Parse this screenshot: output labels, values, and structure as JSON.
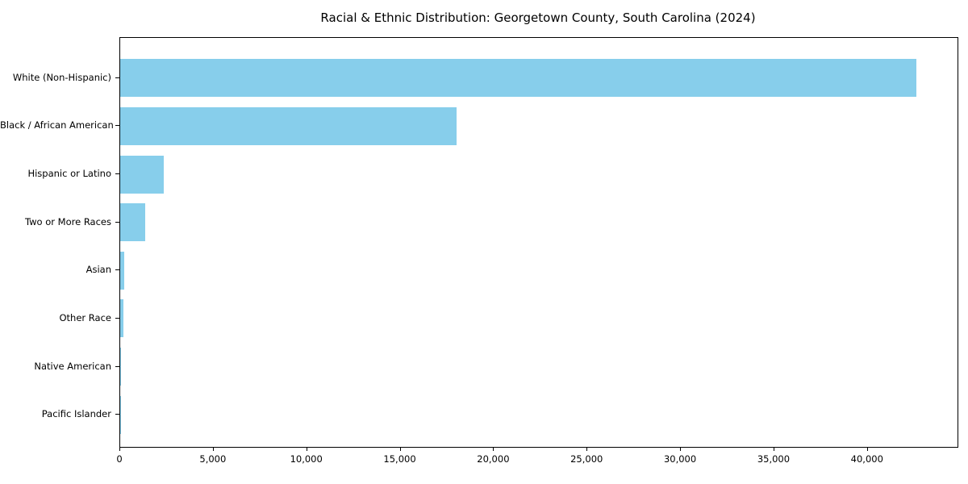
{
  "chart_data": {
    "type": "bar",
    "orientation": "horizontal",
    "title": "Racial & Ethnic Distribution: Georgetown County, South Carolina (2024)",
    "xlabel": "",
    "ylabel": "",
    "categories": [
      "White (Non-Hispanic)",
      "Black / African American",
      "Hispanic or Latino",
      "Two or More Races",
      "Asian",
      "Other Race",
      "Native American",
      "Pacific Islander"
    ],
    "values": [
      42600,
      18000,
      2320,
      1340,
      230,
      190,
      60,
      20
    ],
    "xlim": [
      0,
      44800
    ],
    "x_ticks": [
      0,
      5000,
      10000,
      15000,
      20000,
      25000,
      30000,
      35000,
      40000
    ],
    "x_tick_labels": [
      "0",
      "5,000",
      "10,000",
      "15,000",
      "20,000",
      "25,000",
      "30,000",
      "35,000",
      "40,000"
    ],
    "grid": false,
    "legend": "none",
    "bar_color": "#87CEEB",
    "axis_color": "#000000",
    "text_color": "#000000",
    "background_color": "#FFFFFF"
  }
}
